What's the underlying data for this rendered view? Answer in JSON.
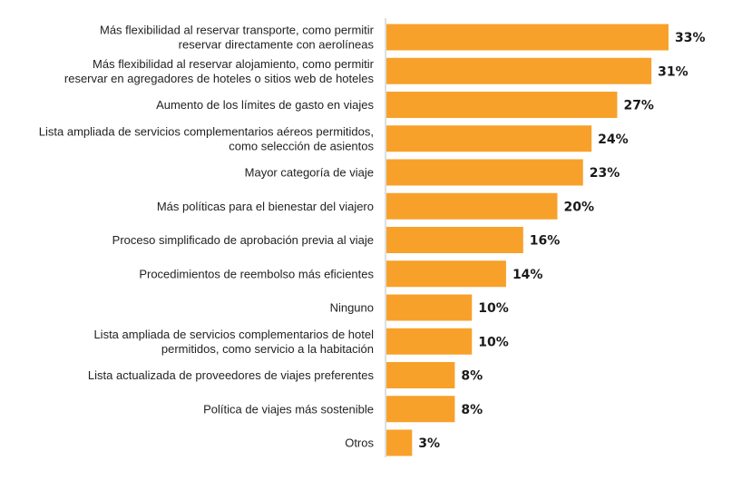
{
  "chart_data": {
    "type": "bar",
    "orientation": "horizontal",
    "bar_color": "#F7A12B",
    "axis_color": "#bfbfbf",
    "value_suffix": "%",
    "xlim": [
      0,
      33
    ],
    "grid": false,
    "title": "",
    "xlabel": "",
    "ylabel": "",
    "categories": [
      [
        "Más flexibilidad al reservar transporte, como permitir",
        "reservar directamente con aerolíneas"
      ],
      [
        "Más flexibilidad al reservar alojamiento, como permitir",
        "reservar en agregadores de hoteles o sitios web de hoteles"
      ],
      [
        "Aumento de los límites de gasto en viajes"
      ],
      [
        "Lista ampliada de servicios complementarios aéreos permitidos,",
        "como selección de asientos"
      ],
      [
        "Mayor categoría de viaje"
      ],
      [
        "Más políticas para el bienestar del viajero"
      ],
      [
        "Proceso simplificado de aprobación previa al viaje"
      ],
      [
        "Procedimientos de reembolso más eficientes"
      ],
      [
        "Ninguno"
      ],
      [
        "Lista ampliada de servicios complementarios de hotel",
        "permitidos, como servicio a la habitación"
      ],
      [
        "Lista actualizada de proveedores de viajes preferentes"
      ],
      [
        "Política de viajes más sostenible"
      ],
      [
        "Otros"
      ]
    ],
    "values": [
      33,
      31,
      27,
      24,
      23,
      20,
      16,
      14,
      10,
      10,
      8,
      8,
      3
    ]
  }
}
